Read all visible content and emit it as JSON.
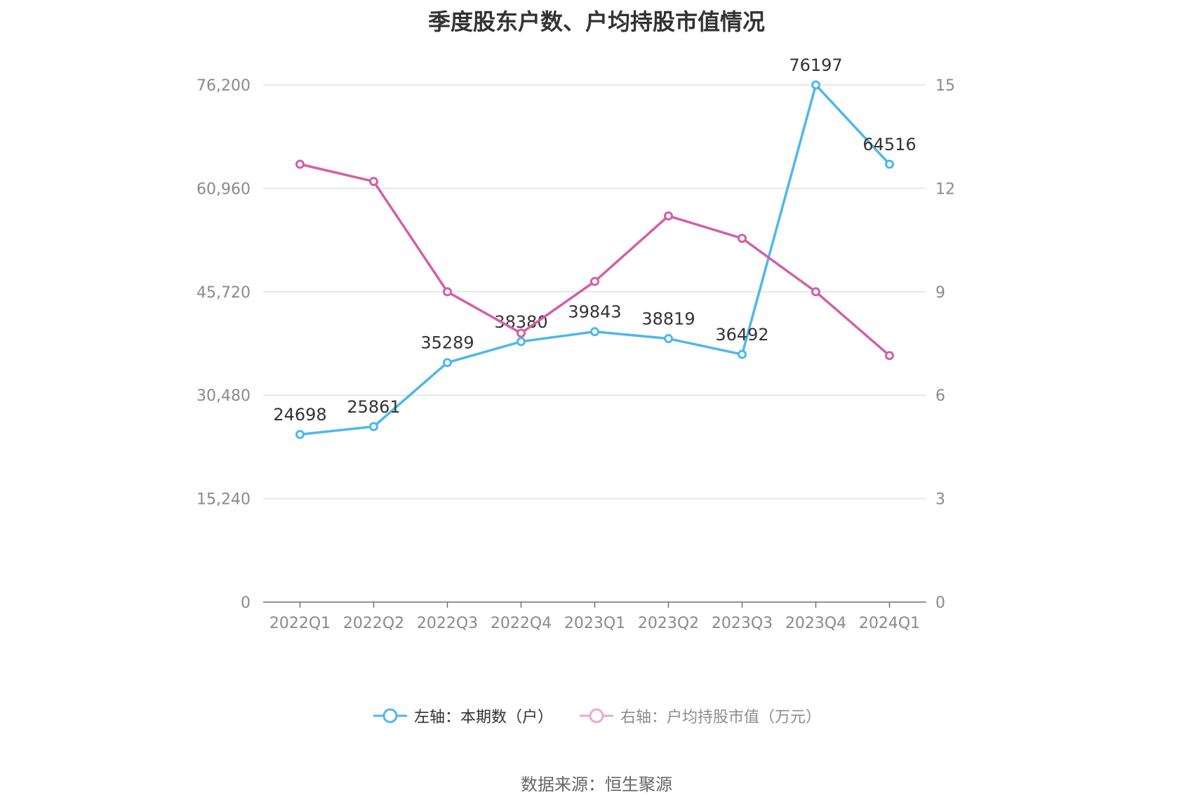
{
  "chart_data": {
    "type": "line",
    "title": "季度股东户数、户均持股市值情况",
    "categories": [
      "2022Q1",
      "2022Q2",
      "2022Q3",
      "2022Q4",
      "2023Q1",
      "2023Q2",
      "2023Q3",
      "2023Q4",
      "2024Q1"
    ],
    "left_axis": {
      "ylim": [
        0,
        76200
      ],
      "ticks": [
        "0",
        "15,240",
        "30,480",
        "45,720",
        "60,960",
        "76,200"
      ]
    },
    "right_axis": {
      "ylim": [
        0,
        15
      ],
      "ticks": [
        "0",
        "3",
        "6",
        "9",
        "12",
        "15"
      ]
    },
    "series": [
      {
        "name": "左轴：本期数（户）",
        "axis": "left",
        "color": "#4db8ec",
        "values": [
          24698,
          25861,
          35289,
          38380,
          39843,
          38819,
          36492,
          76197,
          64516
        ],
        "labels": [
          "24698",
          "25861",
          "35289",
          "38380",
          "39843",
          "38819",
          "36492",
          "76197",
          "64516"
        ]
      },
      {
        "name": "右轴：户均持股市值（万元）",
        "axis": "right",
        "color": "#d35fa8",
        "values": [
          12.7,
          12.2,
          9.0,
          7.8,
          9.3,
          11.2,
          10.55,
          9.0,
          7.15
        ]
      }
    ],
    "legend_position": "bottom",
    "grid": true
  },
  "source": "数据来源：恒生聚源"
}
